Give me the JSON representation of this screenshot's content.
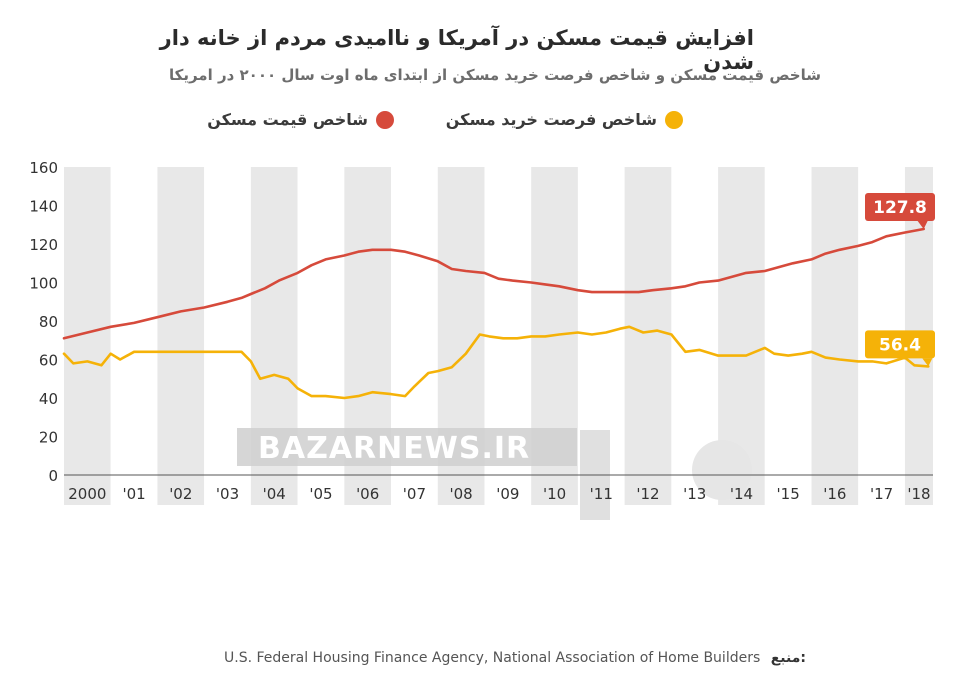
{
  "chart_data": {
    "type": "line",
    "title": "افزایش قیمت مسکن در آمریکا و ناامیدی مردم از خانه دار شدن",
    "subtitle": "شاخص قیمت مسکن و شاخص فرصت خرید مسکن از ابتدای ماه اوت سال ۲۰۰۰ در امریکا",
    "x_tick_labels": [
      "2000",
      "'01",
      "'02",
      "'03",
      "'04",
      "'05",
      "'06",
      "'07",
      "'08",
      "'09",
      "'10",
      "'11",
      "'12",
      "'13",
      "'14",
      "'15",
      "'16",
      "'17",
      "'18"
    ],
    "xlim": [
      2000,
      2018.6
    ],
    "ylim": [
      0,
      160
    ],
    "y_ticks": [
      "0",
      "20",
      "40",
      "60",
      "80",
      "100",
      "120",
      "140",
      "160"
    ],
    "grid": "alternating vertical year bands",
    "legend_position": "top",
    "series": [
      {
        "name": "شاخص قیمت مسکن",
        "color": "#d64a3b",
        "end_label": "127.8",
        "x": [
          2000.0,
          2000.5,
          2001.0,
          2001.5,
          2002.0,
          2002.5,
          2003.0,
          2003.5,
          2003.8,
          2004.0,
          2004.3,
          2004.6,
          2005.0,
          2005.3,
          2005.6,
          2006.0,
          2006.3,
          2006.6,
          2007.0,
          2007.3,
          2007.6,
          2008.0,
          2008.3,
          2008.6,
          2009.0,
          2009.3,
          2009.6,
          2010.0,
          2010.3,
          2010.6,
          2011.0,
          2011.3,
          2011.6,
          2012.0,
          2012.3,
          2012.6,
          2013.0,
          2013.3,
          2013.6,
          2014.0,
          2014.3,
          2014.6,
          2015.0,
          2015.3,
          2015.6,
          2016.0,
          2016.3,
          2016.6,
          2017.0,
          2017.3,
          2017.6,
          2018.0,
          2018.4
        ],
        "values": [
          71,
          74,
          77,
          79,
          82,
          85,
          87,
          90,
          92,
          94,
          97,
          101,
          105,
          109,
          112,
          114,
          116,
          117,
          117,
          116,
          114,
          111,
          107,
          106,
          105,
          102,
          101,
          100,
          99,
          98,
          96,
          95,
          95,
          95,
          95,
          96,
          97,
          98,
          100,
          101,
          103,
          105,
          106,
          108,
          110,
          112,
          115,
          117,
          119,
          121,
          124,
          126,
          127.8
        ]
      },
      {
        "name": "شاخص فرصت خرید مسکن",
        "color": "#f5b208",
        "end_label": "56.4",
        "x": [
          2000.0,
          2000.2,
          2000.5,
          2000.8,
          2001.0,
          2001.2,
          2001.5,
          2001.8,
          2002.0,
          2002.5,
          2003.0,
          2003.5,
          2003.8,
          2004.0,
          2004.2,
          2004.5,
          2004.8,
          2005.0,
          2005.3,
          2005.6,
          2006.0,
          2006.3,
          2006.6,
          2007.0,
          2007.3,
          2007.5,
          2007.8,
          2008.0,
          2008.3,
          2008.6,
          2008.9,
          2009.1,
          2009.4,
          2009.7,
          2010.0,
          2010.3,
          2010.6,
          2011.0,
          2011.3,
          2011.6,
          2011.9,
          2012.1,
          2012.4,
          2012.7,
          2013.0,
          2013.3,
          2013.6,
          2014.0,
          2014.3,
          2014.6,
          2015.0,
          2015.2,
          2015.5,
          2015.8,
          2016.0,
          2016.3,
          2016.6,
          2017.0,
          2017.3,
          2017.6,
          2018.0,
          2018.2,
          2018.5
        ],
        "values": [
          63,
          58,
          59,
          57,
          63,
          60,
          64,
          64,
          64,
          64,
          64,
          64,
          64,
          59,
          50,
          52,
          50,
          45,
          41,
          41,
          40,
          41,
          43,
          42,
          41,
          46,
          53,
          54,
          56,
          63,
          73,
          72,
          71,
          71,
          72,
          72,
          73,
          74,
          73,
          74,
          76,
          77,
          74,
          75,
          73,
          64,
          65,
          62,
          62,
          62,
          66,
          63,
          62,
          63,
          64,
          61,
          60,
          59,
          59,
          58,
          61,
          57,
          56.4
        ]
      }
    ]
  },
  "watermark": {
    "text": "BAZARNEWS.IR"
  },
  "source": {
    "label": "منبع:",
    "text": "U.S. Federal Housing Finance Agency, National Association of Home Builders"
  }
}
